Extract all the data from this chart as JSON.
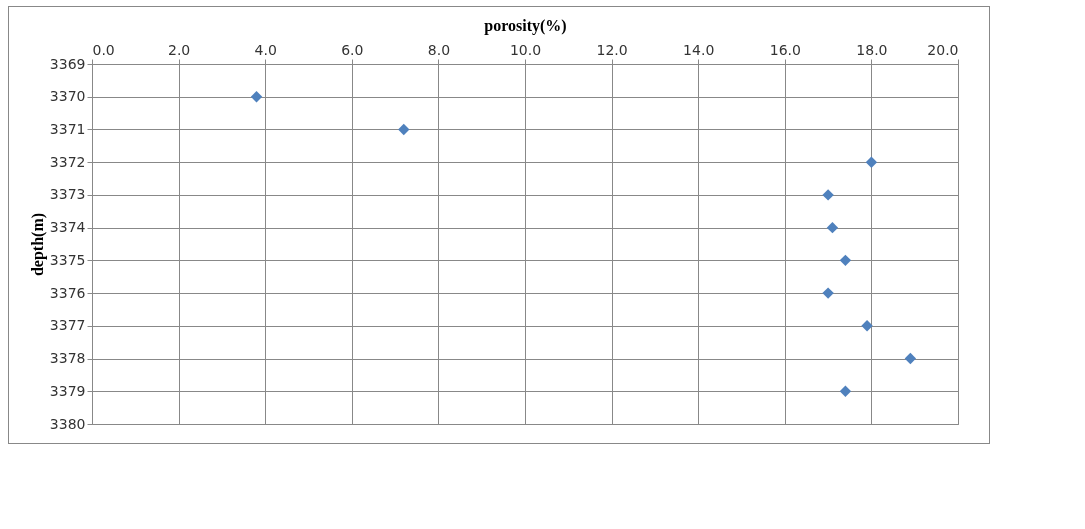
{
  "chart_data": {
    "type": "scatter",
    "xlabel": "porosity(%)",
    "ylabel": "depth(m)",
    "x": [
      3.8,
      7.2,
      18.0,
      17.0,
      17.1,
      17.4,
      17.0,
      17.9,
      18.9,
      17.4
    ],
    "series": [
      {
        "color": "#4f81bd",
        "values": [
          3370,
          3371,
          3372,
          3373,
          3374,
          3375,
          3376,
          3377,
          3378,
          3379
        ]
      }
    ],
    "xlim": [
      0,
      20
    ],
    "xticks": [
      {
        "value": 0,
        "label": "0.0"
      },
      {
        "value": 2,
        "label": "2.0"
      },
      {
        "value": 4,
        "label": "4.0"
      },
      {
        "value": 6,
        "label": "6.0"
      },
      {
        "value": 8,
        "label": "8.0"
      },
      {
        "value": 10,
        "label": "10.0"
      },
      {
        "value": 12,
        "label": "12.0"
      },
      {
        "value": 14,
        "label": "14.0"
      },
      {
        "value": 16,
        "label": "16.0"
      },
      {
        "value": 18,
        "label": "18.0"
      },
      {
        "value": 20,
        "label": "20.0"
      }
    ],
    "ylim": [
      3380,
      3369
    ],
    "yticks": [
      3369,
      3370,
      3371,
      3372,
      3373,
      3374,
      3375,
      3376,
      3377,
      3378,
      3379,
      3380
    ],
    "grid": true,
    "marker": "diamond"
  }
}
